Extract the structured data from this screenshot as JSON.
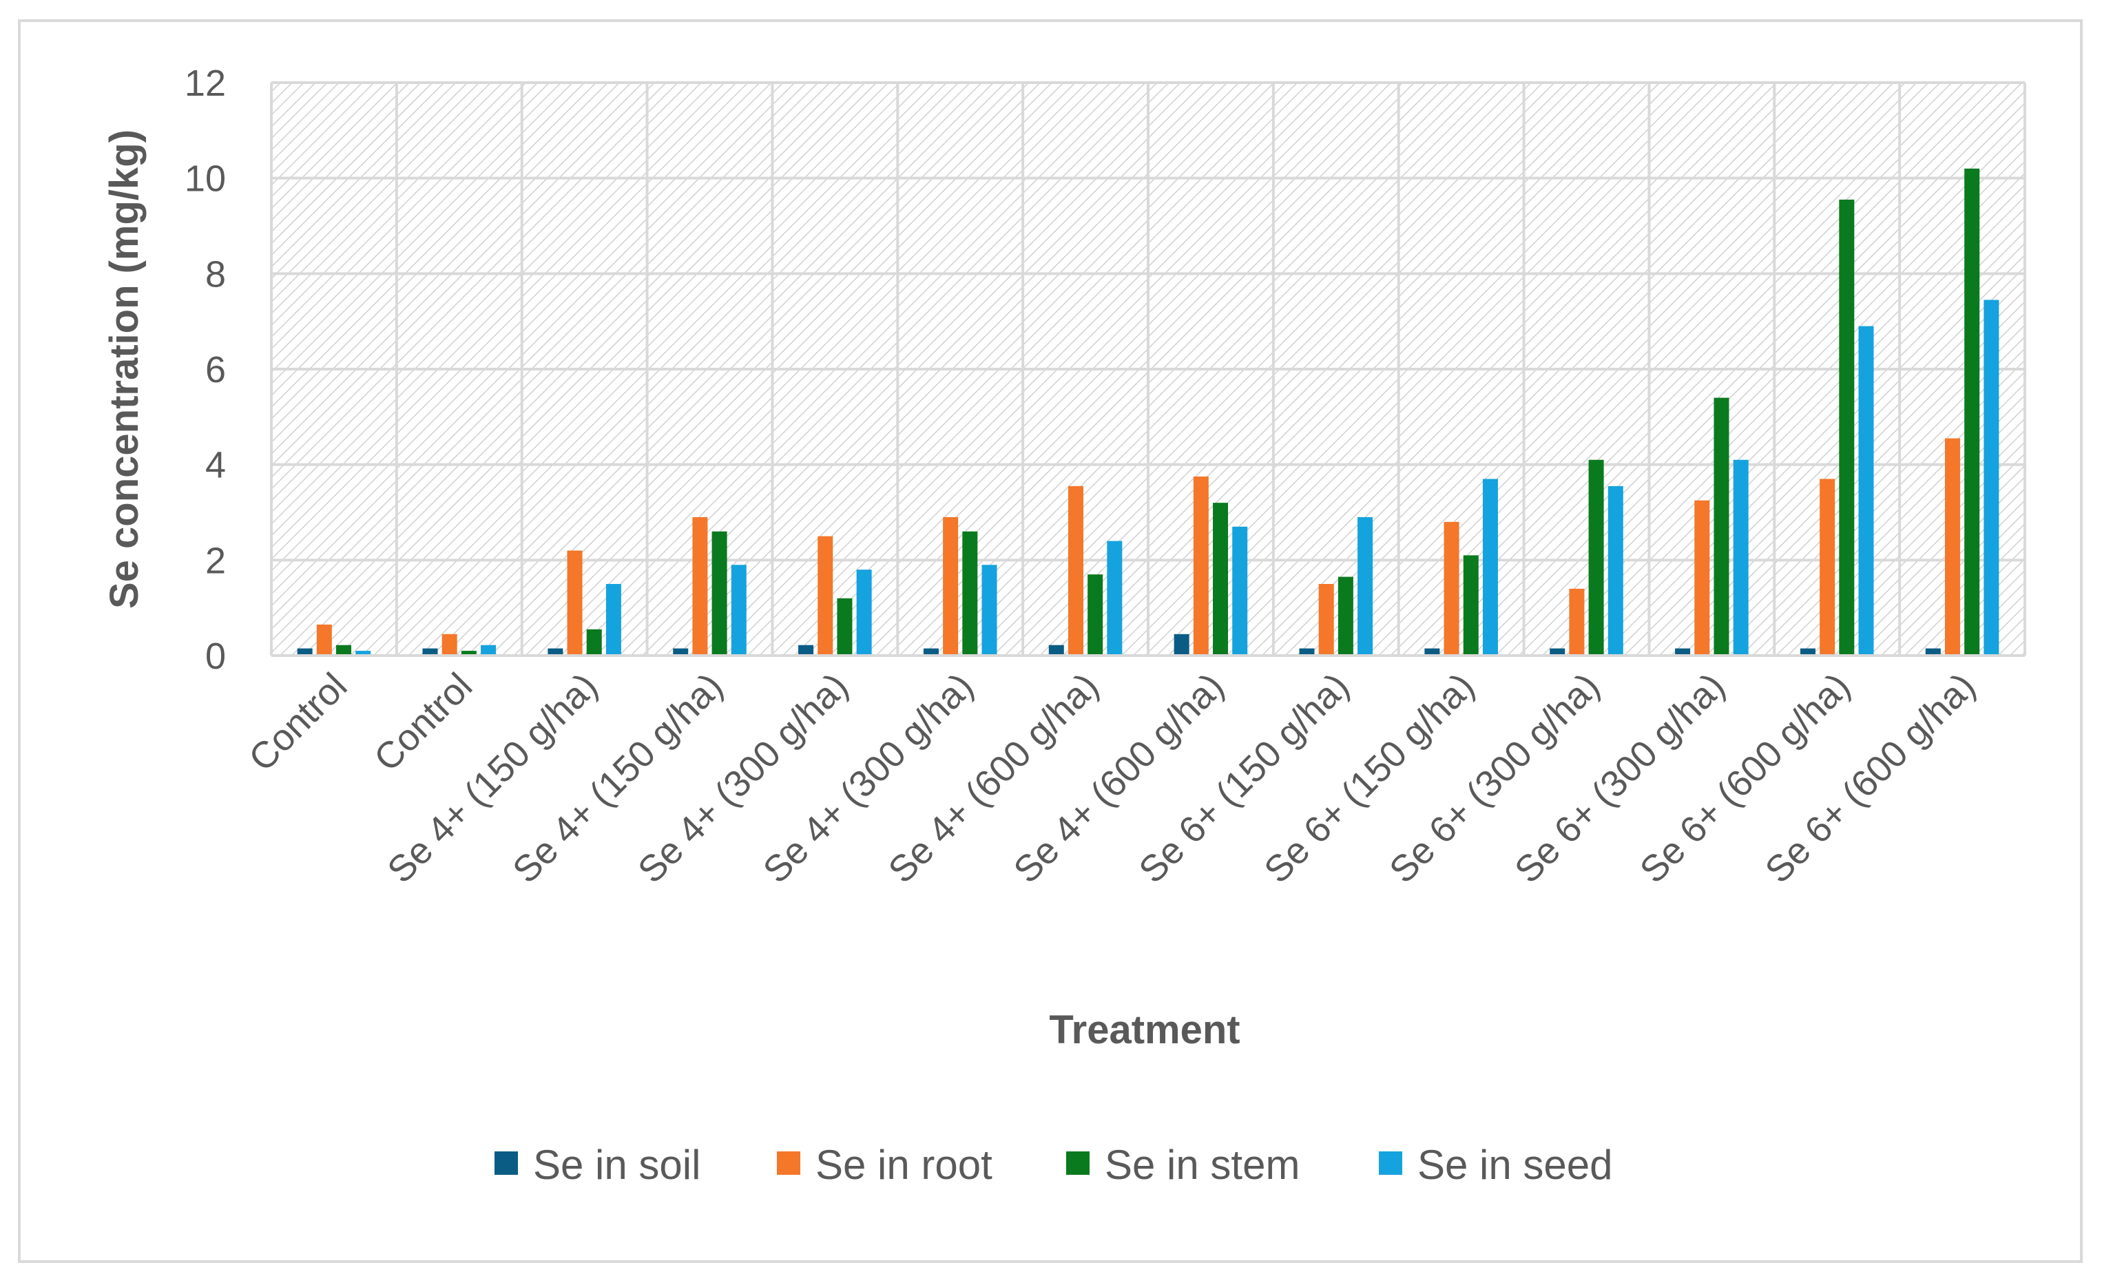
{
  "chart_data": {
    "type": "bar",
    "title": "",
    "xlabel": "Treatment",
    "ylabel": "Se concentration (mg/kg)",
    "ylim": [
      0,
      12
    ],
    "yticks": [
      0,
      2,
      4,
      6,
      8,
      10,
      12
    ],
    "grid": true,
    "legend_position": "bottom",
    "categories": [
      "Control",
      "Control",
      "Se 4+ (150 g/ha)",
      "Se 4+ (150 g/ha)",
      "Se 4+ (300 g/ha)",
      "Se 4+ (300 g/ha)",
      "Se 4+ (600 g/ha)",
      "Se 4+ (600 g/ha)",
      "Se 6+ (150 g/ha)",
      "Se 6+ (150 g/ha)",
      "Se 6+ (300 g/ha)",
      "Se 6+ (300 g/ha)",
      "Se 6+ (600 g/ha)",
      "Se 6+ (600 g/ha)"
    ],
    "series": [
      {
        "name": "Se in soil",
        "color": "#0b5c84",
        "values": [
          0.15,
          0.15,
          0.15,
          0.15,
          0.22,
          0.15,
          0.22,
          0.45,
          0.15,
          0.15,
          0.15,
          0.15,
          0.15,
          0.15
        ]
      },
      {
        "name": "Se in root",
        "color": "#f4772a",
        "values": [
          0.65,
          0.45,
          2.2,
          2.9,
          2.5,
          2.9,
          3.55,
          3.75,
          1.5,
          2.8,
          1.4,
          3.25,
          3.7,
          4.55
        ]
      },
      {
        "name": "Se in stem",
        "color": "#0a7a1e",
        "values": [
          0.22,
          0.1,
          0.55,
          2.6,
          1.2,
          2.6,
          1.7,
          3.2,
          1.65,
          2.1,
          4.1,
          5.4,
          9.55,
          10.2
        ]
      },
      {
        "name": "Se in seed",
        "color": "#14a3de",
        "values": [
          0.1,
          0.22,
          1.5,
          1.9,
          1.8,
          1.9,
          2.4,
          2.7,
          2.9,
          3.7,
          3.55,
          4.1,
          6.9,
          7.45
        ]
      }
    ]
  }
}
